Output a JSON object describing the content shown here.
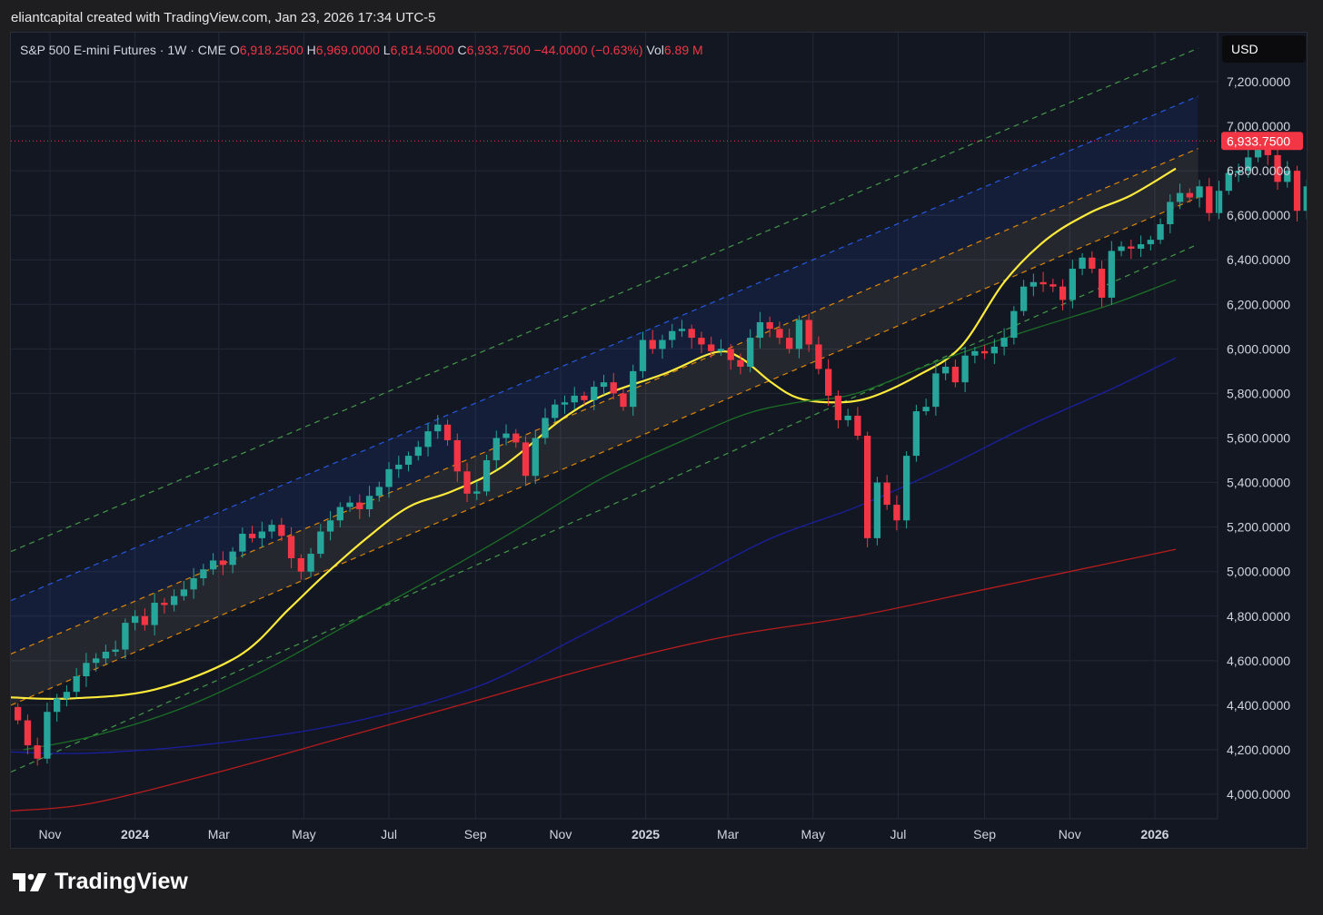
{
  "header": {
    "credit": "eliantcapital created with TradingView.com, Jan 23, 2026 17:34 UTC-5"
  },
  "legend": {
    "symbol": "S&P 500 E-mini Futures · 1W · CME",
    "open_label": "O",
    "open": "6,918.2500",
    "high_label": "H",
    "high": "6,969.0000",
    "low_label": "L",
    "low": "6,814.5000",
    "close_label": "C",
    "close": "6,933.7500",
    "change": "−44.0000 (−0.63%)",
    "vol_label": "Vol",
    "vol": "6.89 M"
  },
  "currency_button": "USD",
  "brand": {
    "name": "TradingView"
  },
  "colors": {
    "up": "#26a69a",
    "down": "#f23645",
    "sma_fast": "#ffeb3b",
    "sma_mid": "#1b6e26",
    "sma_slow": "#1a1fa0",
    "sma_long": "#b71c1c",
    "band_green": "#4caf50",
    "band_blue": "#2962ff",
    "band_orange": "#ff9800"
  },
  "chart_data": {
    "type": "candlestick",
    "timeframe": "1W",
    "last_price_label": "6,933.7500",
    "last_price": 6933.75,
    "y_ticks": [
      "7,200.0000",
      "7,000.0000",
      "6,800.0000",
      "6,600.0000",
      "6,400.0000",
      "6,200.0000",
      "6,000.0000",
      "5,800.0000",
      "5,600.0000",
      "5,400.0000",
      "5,200.0000",
      "5,000.0000",
      "4,800.0000",
      "4,600.0000",
      "4,400.0000",
      "4,200.0000",
      "4,000.0000"
    ],
    "y_tick_values": [
      7200,
      7000,
      6800,
      6600,
      6400,
      6200,
      6000,
      5800,
      5600,
      5400,
      5200,
      5000,
      4800,
      4600,
      4400,
      4200,
      4000
    ],
    "x_ticks": [
      {
        "label": "Nov",
        "date": "2023-11-01",
        "bold": false
      },
      {
        "label": "2024",
        "date": "2024-01-01",
        "bold": true
      },
      {
        "label": "Mar",
        "date": "2024-03-01",
        "bold": false
      },
      {
        "label": "May",
        "date": "2024-05-01",
        "bold": false
      },
      {
        "label": "Jul",
        "date": "2024-07-01",
        "bold": false
      },
      {
        "label": "Sep",
        "date": "2024-09-01",
        "bold": false
      },
      {
        "label": "Nov",
        "date": "2024-11-01",
        "bold": false
      },
      {
        "label": "2025",
        "date": "2025-01-01",
        "bold": true
      },
      {
        "label": "Mar",
        "date": "2025-03-01",
        "bold": false
      },
      {
        "label": "May",
        "date": "2025-05-01",
        "bold": false
      },
      {
        "label": "Jul",
        "date": "2025-07-01",
        "bold": false
      },
      {
        "label": "Sep",
        "date": "2025-09-01",
        "bold": false
      },
      {
        "label": "Nov",
        "date": "2025-11-01",
        "bold": false
      },
      {
        "label": "2026",
        "date": "2026-01-01",
        "bold": true
      }
    ],
    "x_range": [
      "2023-10-04",
      "2026-02-15"
    ],
    "y_range": [
      3890,
      7420
    ],
    "first_week": "2023-10-09",
    "closes": [
      4332,
      4220,
      4160,
      4370,
      4430,
      4460,
      4530,
      4590,
      4610,
      4640,
      4650,
      4770,
      4800,
      4760,
      4860,
      4850,
      4890,
      4920,
      4970,
      5010,
      5050,
      5030,
      5090,
      5170,
      5150,
      5180,
      5210,
      5160,
      5060,
      5000,
      5080,
      5180,
      5230,
      5290,
      5310,
      5280,
      5340,
      5380,
      5460,
      5480,
      5520,
      5560,
      5630,
      5660,
      5590,
      5450,
      5350,
      5360,
      5500,
      5600,
      5620,
      5580,
      5430,
      5600,
      5690,
      5750,
      5760,
      5790,
      5770,
      5830,
      5850,
      5800,
      5740,
      5900,
      6040,
      6000,
      6040,
      6080,
      6090,
      6050,
      6020,
      5990,
      6000,
      5950,
      5920,
      6050,
      6120,
      6090,
      6050,
      6000,
      6130,
      6020,
      5910,
      5790,
      5680,
      5700,
      5610,
      5150,
      5400,
      5300,
      5230,
      5520,
      5720,
      5740,
      5890,
      5920,
      5850,
      5970,
      5990,
      5980,
      6010,
      6050,
      6170,
      6280,
      6300,
      6290,
      6280,
      6220,
      6360,
      6410,
      6360,
      6230,
      6440,
      6460,
      6450,
      6470,
      6490,
      6560,
      6660,
      6700,
      6680,
      6730,
      6610,
      6710,
      6790,
      6800,
      6860,
      6950,
      6870,
      6750,
      6800,
      6620,
      6730,
      6860,
      6880,
      6900,
      6850,
      6900,
      6960,
      6980,
      6900,
      7010,
      6978,
      6934
    ],
    "band_lines": [
      {
        "name": "upper-green",
        "color": "#4caf50",
        "start": [
          "2023-10-04",
          5090
        ],
        "end": [
          "2026-02-01",
          7350
        ]
      },
      {
        "name": "upper-blue",
        "color": "#2962ff",
        "start": [
          "2023-10-04",
          4870
        ],
        "end": [
          "2026-02-01",
          7135
        ]
      },
      {
        "name": "mid-orange",
        "color": "#ff9800",
        "start": [
          "2023-10-04",
          4630
        ],
        "end": [
          "2026-02-01",
          6900
        ]
      },
      {
        "name": "low-orange",
        "color": "#ff9800",
        "start": [
          "2023-10-04",
          4400
        ],
        "end": [
          "2026-02-01",
          6680
        ]
      },
      {
        "name": "lower-green",
        "color": "#4caf50",
        "start": [
          "2023-10-04",
          4100
        ],
        "end": [
          "2026-02-01",
          6470
        ]
      }
    ],
    "moving_averages": [
      {
        "name": "ma-fast",
        "color": "#ffeb3b",
        "width": 2.2,
        "points": [
          [
            "2023-10-04",
            4435
          ],
          [
            "2023-11-15",
            4430
          ],
          [
            "2024-01-15",
            4470
          ],
          [
            "2024-03-15",
            4620
          ],
          [
            "2024-04-20",
            4830
          ],
          [
            "2024-05-15",
            4980
          ],
          [
            "2024-06-15",
            5150
          ],
          [
            "2024-07-15",
            5290
          ],
          [
            "2024-08-15",
            5360
          ],
          [
            "2024-09-20",
            5470
          ],
          [
            "2024-11-01",
            5680
          ],
          [
            "2024-12-01",
            5790
          ],
          [
            "2025-01-15",
            5890
          ],
          [
            "2025-02-20",
            5985
          ],
          [
            "2025-03-10",
            5960
          ],
          [
            "2025-04-01",
            5850
          ],
          [
            "2025-04-20",
            5780
          ],
          [
            "2025-05-15",
            5760
          ],
          [
            "2025-06-10",
            5780
          ],
          [
            "2025-07-15",
            5880
          ],
          [
            "2025-08-15",
            6010
          ],
          [
            "2025-09-15",
            6300
          ],
          [
            "2025-10-15",
            6490
          ],
          [
            "2025-11-15",
            6610
          ],
          [
            "2025-12-15",
            6690
          ],
          [
            "2026-01-16",
            6810
          ]
        ]
      },
      {
        "name": "ma-mid",
        "color": "#1b6e26",
        "width": 1.3,
        "points": [
          [
            "2023-10-13",
            4200
          ],
          [
            "2023-12-01",
            4260
          ],
          [
            "2024-02-01",
            4380
          ],
          [
            "2024-04-01",
            4550
          ],
          [
            "2024-06-01",
            4760
          ],
          [
            "2024-08-01",
            4970
          ],
          [
            "2024-10-01",
            5190
          ],
          [
            "2024-12-01",
            5420
          ],
          [
            "2025-02-01",
            5600
          ],
          [
            "2025-03-15",
            5710
          ],
          [
            "2025-04-20",
            5760
          ],
          [
            "2025-06-01",
            5800
          ],
          [
            "2025-08-01",
            5950
          ],
          [
            "2025-10-01",
            6080
          ],
          [
            "2025-12-01",
            6200
          ],
          [
            "2026-01-16",
            6310
          ]
        ]
      },
      {
        "name": "ma-slow",
        "color": "#1a1fa0",
        "width": 1.3,
        "points": [
          [
            "2023-10-04",
            4190
          ],
          [
            "2023-12-01",
            4185
          ],
          [
            "2024-03-01",
            4230
          ],
          [
            "2024-06-01",
            4320
          ],
          [
            "2024-09-01",
            4480
          ],
          [
            "2024-11-15",
            4710
          ],
          [
            "2025-02-01",
            4960
          ],
          [
            "2025-04-01",
            5150
          ],
          [
            "2025-06-01",
            5290
          ],
          [
            "2025-08-01",
            5460
          ],
          [
            "2025-10-01",
            5650
          ],
          [
            "2025-12-01",
            5820
          ],
          [
            "2026-01-16",
            5960
          ]
        ]
      },
      {
        "name": "ma-long",
        "color": "#b71c1c",
        "width": 1.3,
        "points": [
          [
            "2023-10-04",
            3925
          ],
          [
            "2023-12-01",
            3960
          ],
          [
            "2024-03-01",
            4100
          ],
          [
            "2024-06-01",
            4260
          ],
          [
            "2024-09-01",
            4420
          ],
          [
            "2024-12-01",
            4580
          ],
          [
            "2025-03-01",
            4710
          ],
          [
            "2025-06-01",
            4800
          ],
          [
            "2025-09-01",
            4920
          ],
          [
            "2025-11-01",
            5000
          ],
          [
            "2026-01-16",
            5100
          ]
        ]
      }
    ]
  }
}
